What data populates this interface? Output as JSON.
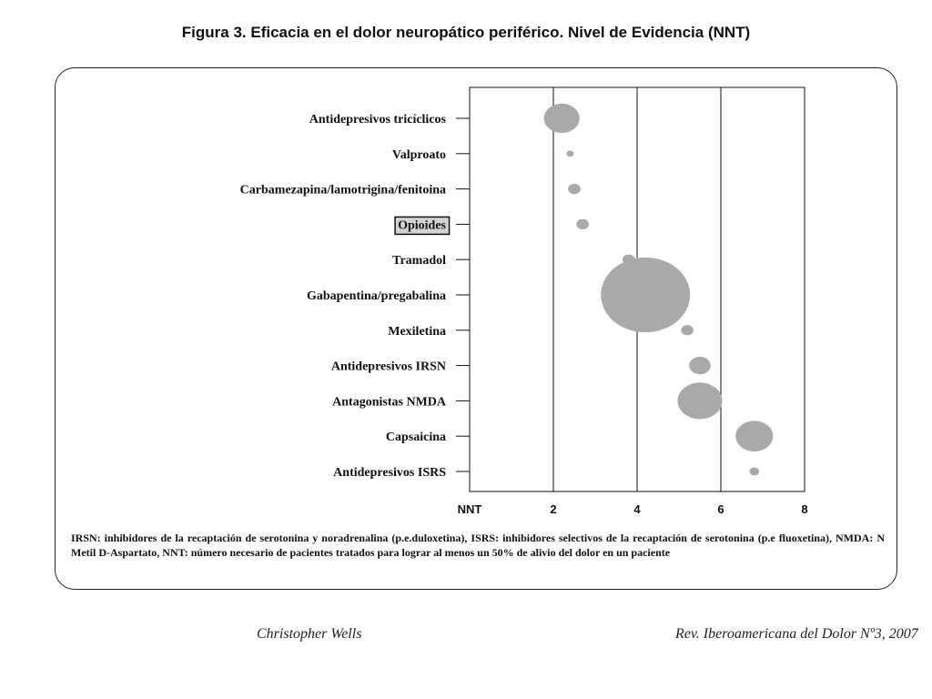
{
  "figure": {
    "title": "Figura 3. Eficacia en el dolor neuropático periférico. Nivel de Evidencia (NNT)",
    "footnote": "IRSN: inhibidores de la recaptación de serotonina y noradrenalina (p.e.duloxetina), ISRS: inhibidores selectivos de la recaptación de serotonina (p.e fluoxetina), NMDA: N Metil D-Aspartato, NNT: número necesario de pacientes tratados para lograr al menos un 50% de alivio del dolor en un paciente",
    "author": "Christopher Wells",
    "journal": "Rev. Iberoamericana del Dolor Nº3, 2007"
  },
  "chart_data": {
    "type": "scatter",
    "title": "Figura 3. Eficacia en el dolor neuropático periférico. Nivel de Evidencia (NNT)",
    "xlabel": "NNT",
    "ylabel": "",
    "xlim": [
      0,
      8
    ],
    "x_ticks": [
      "2",
      "4",
      "6",
      "8"
    ],
    "grid": "vertical lines at NNT 2, 4, 6",
    "highlighted_category": "Opioides",
    "marker_color": "#a9a9a9",
    "categories": [
      "Antidepresivos tricíclicos",
      "Valproato",
      "Carbamezapina/lamotrigina/fenitoina",
      "Opioides",
      "Tramadol",
      "Gabapentina/pregabalina",
      "Mexiletina",
      "Antidepresivos IRSN",
      "Antagonistas NMDA",
      "Capsaicina",
      "Antidepresivos ISRS"
    ],
    "points": [
      {
        "category": "Antidepresivos tricíclicos",
        "x": 2.2,
        "size": 0.4
      },
      {
        "category": "Valproato",
        "x": 2.4,
        "size": 0.08
      },
      {
        "category": "Carbamezapina/lamotrigina/fenitoina",
        "x": 2.5,
        "size": 0.14
      },
      {
        "category": "Opioides",
        "x": 2.7,
        "size": 0.14
      },
      {
        "category": "Tramadol",
        "x": 3.8,
        "size": 0.14
      },
      {
        "category": "Gabapentina/pregabalina",
        "x": 4.2,
        "size": 1.0
      },
      {
        "category": "Mexiletina",
        "x": 5.2,
        "size": 0.14
      },
      {
        "category": "Antidepresivos IRSN",
        "x": 5.5,
        "size": 0.24
      },
      {
        "category": "Antagonistas NMDA",
        "x": 5.5,
        "size": 0.5
      },
      {
        "category": "Capsaicina",
        "x": 6.8,
        "size": 0.42
      },
      {
        "category": "Antidepresivos ISRS",
        "x": 6.8,
        "size": 0.11
      }
    ]
  }
}
